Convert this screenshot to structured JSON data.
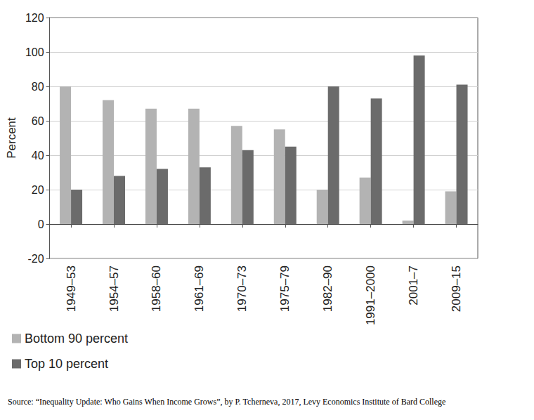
{
  "chart_data": {
    "type": "bar",
    "y_label": "Percent",
    "source": "Source: “Inequality Update: Who Gains When Income Grows”, by P. Tcherneva, 2017, Levy Economics Institute of Bard College",
    "categories": [
      "1949–53",
      "1954–57",
      "1958–60",
      "1961–69",
      "1970–73",
      "1975–79",
      "1982–90",
      "1991–2000",
      "2001–7",
      "2009–15"
    ],
    "series": [
      {
        "name": "Bottom 90 percent",
        "color": "#b3b3b3",
        "values": [
          80,
          72,
          67,
          67,
          57,
          55,
          20,
          27,
          2,
          19
        ]
      },
      {
        "name": "Top 10 percent",
        "color": "#6b6b6b",
        "values": [
          20,
          28,
          32,
          33,
          43,
          45,
          80,
          73,
          98,
          81
        ]
      }
    ],
    "ylim": [
      -20,
      120
    ],
    "yticks": [
      -20,
      0,
      20,
      40,
      60,
      80,
      100,
      120
    ],
    "grid": true,
    "legend": "bottom-left"
  }
}
